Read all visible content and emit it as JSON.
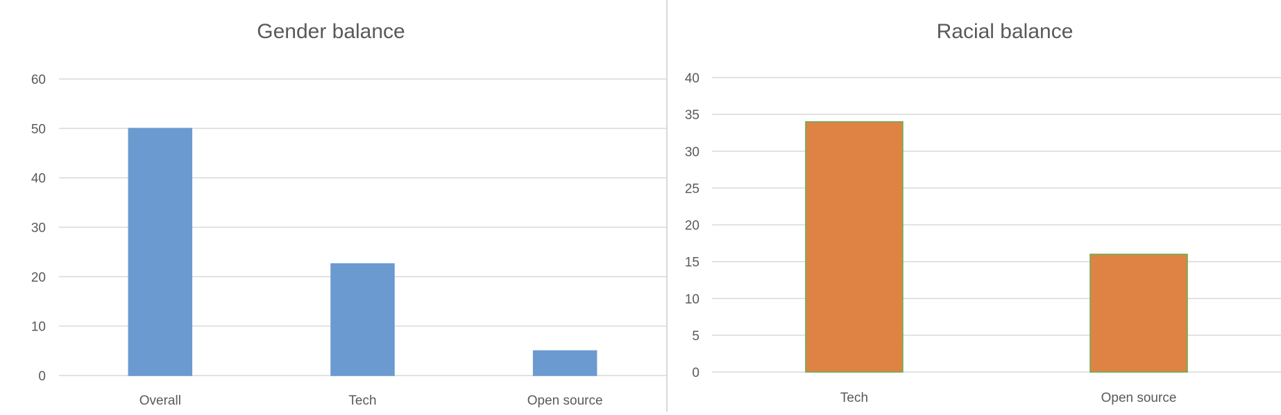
{
  "chart_data": [
    {
      "type": "bar",
      "title": "Gender balance",
      "categories": [
        "Overall",
        "Tech",
        "Open source"
      ],
      "values": [
        50,
        22.6,
        5
      ],
      "ylim": [
        0,
        60
      ],
      "yticks": [
        0,
        10,
        20,
        30,
        40,
        50,
        60
      ],
      "grid": true,
      "color": "#6a9ad0",
      "border_color": "#6a9ad0"
    },
    {
      "type": "bar",
      "title": "Racial balance",
      "categories": [
        "Tech",
        "Open source"
      ],
      "values": [
        34,
        16
      ],
      "ylim": [
        0,
        40
      ],
      "yticks": [
        0,
        5,
        10,
        15,
        20,
        25,
        30,
        35,
        40
      ],
      "grid": true,
      "color": "#df8344",
      "border_color": "#5fae4e"
    }
  ]
}
